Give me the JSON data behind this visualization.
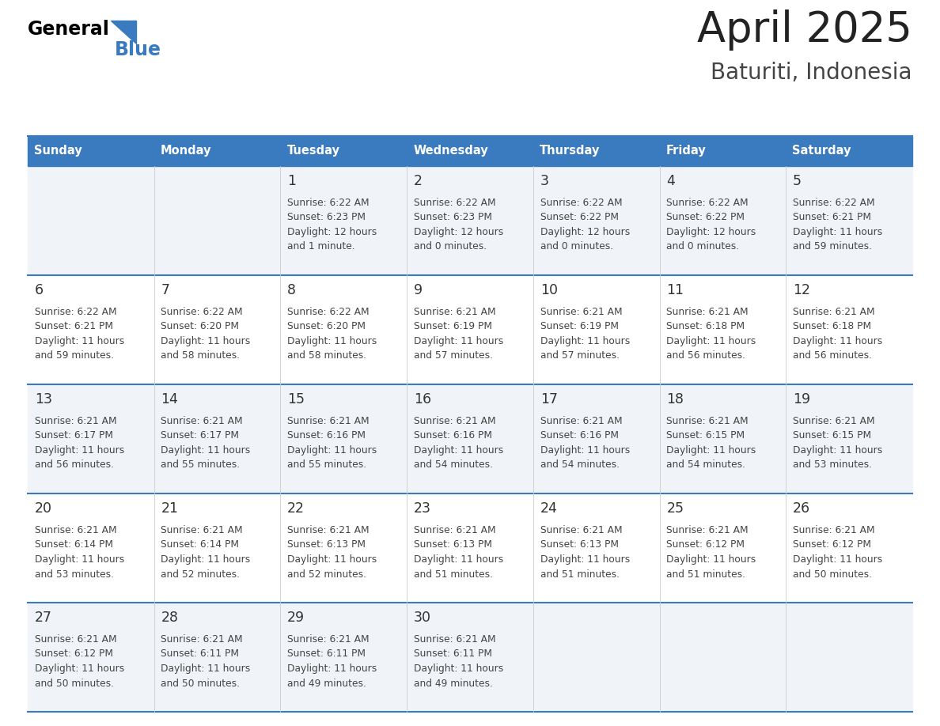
{
  "title": "April 2025",
  "subtitle": "Baturiti, Indonesia",
  "header_bg": "#3a7abf",
  "header_text": "#ffffff",
  "weekdays": [
    "Sunday",
    "Monday",
    "Tuesday",
    "Wednesday",
    "Thursday",
    "Friday",
    "Saturday"
  ],
  "row_bg_even": "#f0f4f8",
  "row_bg_odd": "#ffffff",
  "separator_color": "#3a7abf",
  "day_number_color": "#333333",
  "text_color": "#444444",
  "days": [
    {
      "day": 1,
      "col": 2,
      "row": 0,
      "sunrise": "6:22 AM",
      "sunset": "6:23 PM",
      "daylight_line1": "Daylight: 12 hours",
      "daylight_line2": "and 1 minute."
    },
    {
      "day": 2,
      "col": 3,
      "row": 0,
      "sunrise": "6:22 AM",
      "sunset": "6:23 PM",
      "daylight_line1": "Daylight: 12 hours",
      "daylight_line2": "and 0 minutes."
    },
    {
      "day": 3,
      "col": 4,
      "row": 0,
      "sunrise": "6:22 AM",
      "sunset": "6:22 PM",
      "daylight_line1": "Daylight: 12 hours",
      "daylight_line2": "and 0 minutes."
    },
    {
      "day": 4,
      "col": 5,
      "row": 0,
      "sunrise": "6:22 AM",
      "sunset": "6:22 PM",
      "daylight_line1": "Daylight: 12 hours",
      "daylight_line2": "and 0 minutes."
    },
    {
      "day": 5,
      "col": 6,
      "row": 0,
      "sunrise": "6:22 AM",
      "sunset": "6:21 PM",
      "daylight_line1": "Daylight: 11 hours",
      "daylight_line2": "and 59 minutes."
    },
    {
      "day": 6,
      "col": 0,
      "row": 1,
      "sunrise": "6:22 AM",
      "sunset": "6:21 PM",
      "daylight_line1": "Daylight: 11 hours",
      "daylight_line2": "and 59 minutes."
    },
    {
      "day": 7,
      "col": 1,
      "row": 1,
      "sunrise": "6:22 AM",
      "sunset": "6:20 PM",
      "daylight_line1": "Daylight: 11 hours",
      "daylight_line2": "and 58 minutes."
    },
    {
      "day": 8,
      "col": 2,
      "row": 1,
      "sunrise": "6:22 AM",
      "sunset": "6:20 PM",
      "daylight_line1": "Daylight: 11 hours",
      "daylight_line2": "and 58 minutes."
    },
    {
      "day": 9,
      "col": 3,
      "row": 1,
      "sunrise": "6:21 AM",
      "sunset": "6:19 PM",
      "daylight_line1": "Daylight: 11 hours",
      "daylight_line2": "and 57 minutes."
    },
    {
      "day": 10,
      "col": 4,
      "row": 1,
      "sunrise": "6:21 AM",
      "sunset": "6:19 PM",
      "daylight_line1": "Daylight: 11 hours",
      "daylight_line2": "and 57 minutes."
    },
    {
      "day": 11,
      "col": 5,
      "row": 1,
      "sunrise": "6:21 AM",
      "sunset": "6:18 PM",
      "daylight_line1": "Daylight: 11 hours",
      "daylight_line2": "and 56 minutes."
    },
    {
      "day": 12,
      "col": 6,
      "row": 1,
      "sunrise": "6:21 AM",
      "sunset": "6:18 PM",
      "daylight_line1": "Daylight: 11 hours",
      "daylight_line2": "and 56 minutes."
    },
    {
      "day": 13,
      "col": 0,
      "row": 2,
      "sunrise": "6:21 AM",
      "sunset": "6:17 PM",
      "daylight_line1": "Daylight: 11 hours",
      "daylight_line2": "and 56 minutes."
    },
    {
      "day": 14,
      "col": 1,
      "row": 2,
      "sunrise": "6:21 AM",
      "sunset": "6:17 PM",
      "daylight_line1": "Daylight: 11 hours",
      "daylight_line2": "and 55 minutes."
    },
    {
      "day": 15,
      "col": 2,
      "row": 2,
      "sunrise": "6:21 AM",
      "sunset": "6:16 PM",
      "daylight_line1": "Daylight: 11 hours",
      "daylight_line2": "and 55 minutes."
    },
    {
      "day": 16,
      "col": 3,
      "row": 2,
      "sunrise": "6:21 AM",
      "sunset": "6:16 PM",
      "daylight_line1": "Daylight: 11 hours",
      "daylight_line2": "and 54 minutes."
    },
    {
      "day": 17,
      "col": 4,
      "row": 2,
      "sunrise": "6:21 AM",
      "sunset": "6:16 PM",
      "daylight_line1": "Daylight: 11 hours",
      "daylight_line2": "and 54 minutes."
    },
    {
      "day": 18,
      "col": 5,
      "row": 2,
      "sunrise": "6:21 AM",
      "sunset": "6:15 PM",
      "daylight_line1": "Daylight: 11 hours",
      "daylight_line2": "and 54 minutes."
    },
    {
      "day": 19,
      "col": 6,
      "row": 2,
      "sunrise": "6:21 AM",
      "sunset": "6:15 PM",
      "daylight_line1": "Daylight: 11 hours",
      "daylight_line2": "and 53 minutes."
    },
    {
      "day": 20,
      "col": 0,
      "row": 3,
      "sunrise": "6:21 AM",
      "sunset": "6:14 PM",
      "daylight_line1": "Daylight: 11 hours",
      "daylight_line2": "and 53 minutes."
    },
    {
      "day": 21,
      "col": 1,
      "row": 3,
      "sunrise": "6:21 AM",
      "sunset": "6:14 PM",
      "daylight_line1": "Daylight: 11 hours",
      "daylight_line2": "and 52 minutes."
    },
    {
      "day": 22,
      "col": 2,
      "row": 3,
      "sunrise": "6:21 AM",
      "sunset": "6:13 PM",
      "daylight_line1": "Daylight: 11 hours",
      "daylight_line2": "and 52 minutes."
    },
    {
      "day": 23,
      "col": 3,
      "row": 3,
      "sunrise": "6:21 AM",
      "sunset": "6:13 PM",
      "daylight_line1": "Daylight: 11 hours",
      "daylight_line2": "and 51 minutes."
    },
    {
      "day": 24,
      "col": 4,
      "row": 3,
      "sunrise": "6:21 AM",
      "sunset": "6:13 PM",
      "daylight_line1": "Daylight: 11 hours",
      "daylight_line2": "and 51 minutes."
    },
    {
      "day": 25,
      "col": 5,
      "row": 3,
      "sunrise": "6:21 AM",
      "sunset": "6:12 PM",
      "daylight_line1": "Daylight: 11 hours",
      "daylight_line2": "and 51 minutes."
    },
    {
      "day": 26,
      "col": 6,
      "row": 3,
      "sunrise": "6:21 AM",
      "sunset": "6:12 PM",
      "daylight_line1": "Daylight: 11 hours",
      "daylight_line2": "and 50 minutes."
    },
    {
      "day": 27,
      "col": 0,
      "row": 4,
      "sunrise": "6:21 AM",
      "sunset": "6:12 PM",
      "daylight_line1": "Daylight: 11 hours",
      "daylight_line2": "and 50 minutes."
    },
    {
      "day": 28,
      "col": 1,
      "row": 4,
      "sunrise": "6:21 AM",
      "sunset": "6:11 PM",
      "daylight_line1": "Daylight: 11 hours",
      "daylight_line2": "and 50 minutes."
    },
    {
      "day": 29,
      "col": 2,
      "row": 4,
      "sunrise": "6:21 AM",
      "sunset": "6:11 PM",
      "daylight_line1": "Daylight: 11 hours",
      "daylight_line2": "and 49 minutes."
    },
    {
      "day": 30,
      "col": 3,
      "row": 4,
      "sunrise": "6:21 AM",
      "sunset": "6:11 PM",
      "daylight_line1": "Daylight: 11 hours",
      "daylight_line2": "and 49 minutes."
    }
  ],
  "num_rows": 5,
  "ncols": 7,
  "fig_width": 11.88,
  "fig_height": 9.18,
  "dpi": 100
}
